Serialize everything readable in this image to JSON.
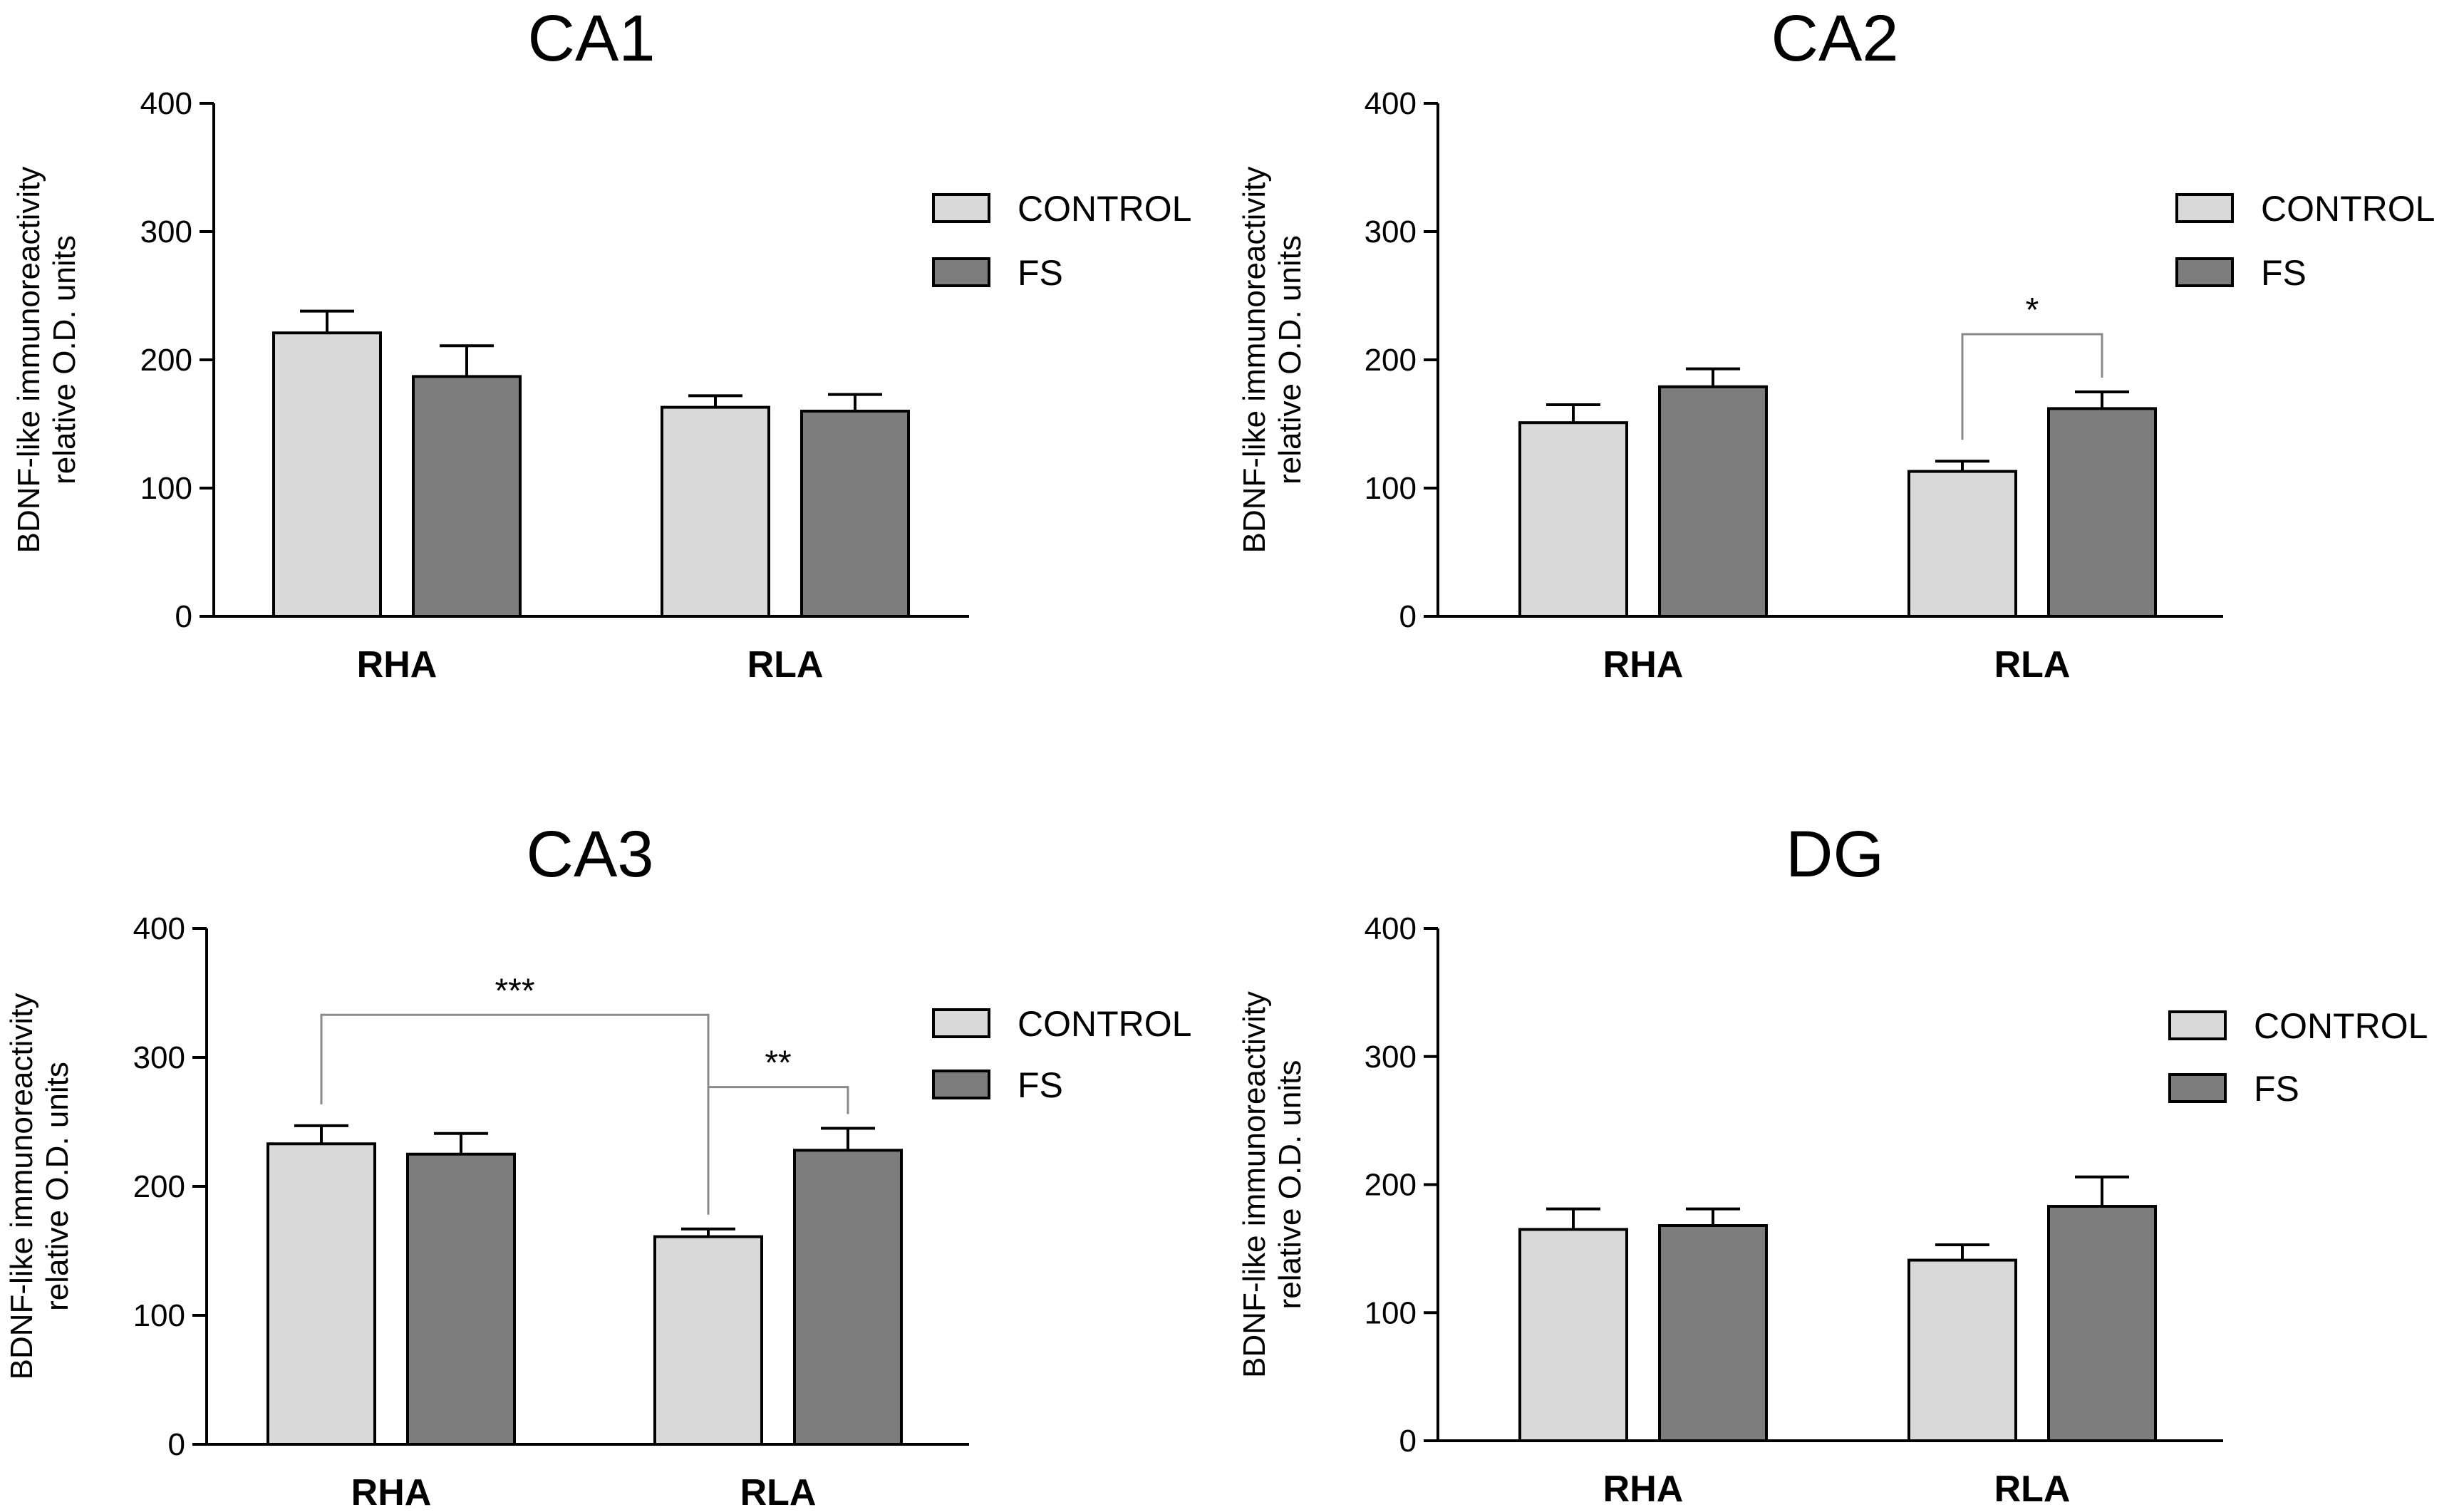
{
  "colors": {
    "control": "#d9d9d9",
    "fs": "#7d7d7d",
    "axis": "#000000",
    "bracket": "#8a8a8a"
  },
  "chart_data": [
    {
      "type": "bar",
      "title": "CA1",
      "ylabel_line1": "BDNF-like immunoreactivity",
      "ylabel_line2": "relative O.D. units",
      "xlabel": "",
      "categories": [
        "RHA",
        "RLA"
      ],
      "ylim": [
        0,
        400
      ],
      "yticks": [
        0,
        100,
        200,
        300,
        400
      ],
      "series": [
        {
          "name": "CONTROL",
          "values": [
            221,
            163
          ],
          "errors": [
            17,
            9
          ]
        },
        {
          "name": "FS",
          "values": [
            187,
            160
          ],
          "errors": [
            24,
            13
          ]
        }
      ],
      "legend": [
        "CONTROL",
        "FS"
      ],
      "significance": []
    },
    {
      "type": "bar",
      "title": "CA2",
      "ylabel_line1": "BDNF-like immunoreactivity",
      "ylabel_line2": "relative O.D. units",
      "xlabel": "",
      "categories": [
        "RHA",
        "RLA"
      ],
      "ylim": [
        0,
        400
      ],
      "yticks": [
        0,
        100,
        200,
        300,
        400
      ],
      "series": [
        {
          "name": "CONTROL",
          "values": [
            151,
            113
          ],
          "errors": [
            14,
            8
          ]
        },
        {
          "name": "FS",
          "values": [
            179,
            162
          ],
          "errors": [
            14,
            13
          ]
        }
      ],
      "legend": [
        "CONTROL",
        "FS"
      ],
      "significance": [
        {
          "label": "*",
          "from": {
            "series": 0,
            "category": 1
          },
          "to": {
            "series": 1,
            "category": 1
          },
          "y": 220
        }
      ]
    },
    {
      "type": "bar",
      "title": "CA3",
      "ylabel_line1": "BDNF-like immunoreactivity",
      "ylabel_line2": "relative O.D. units",
      "xlabel": "",
      "categories": [
        "RHA",
        "RLA"
      ],
      "ylim": [
        0,
        400
      ],
      "yticks": [
        0,
        100,
        200,
        300,
        400
      ],
      "series": [
        {
          "name": "CONTROL",
          "values": [
            233,
            161
          ],
          "errors": [
            14,
            6
          ]
        },
        {
          "name": "FS",
          "values": [
            225,
            228
          ],
          "errors": [
            16,
            17
          ]
        }
      ],
      "legend": [
        "CONTROL",
        "FS"
      ],
      "significance": [
        {
          "label": "***",
          "from": {
            "series": 0,
            "category": 0
          },
          "to": {
            "series": 0,
            "category": 1
          },
          "y": 333
        },
        {
          "label": "**",
          "from": {
            "series": 0,
            "category": 1
          },
          "to": {
            "series": 1,
            "category": 1
          },
          "y": 277
        }
      ]
    },
    {
      "type": "bar",
      "title": "DG",
      "ylabel_line1": "BDNF-like immunoreactivity",
      "ylabel_line2": "relative O.D. units",
      "xlabel": "",
      "categories": [
        "RHA",
        "RLA"
      ],
      "ylim": [
        0,
        400
      ],
      "yticks": [
        0,
        100,
        200,
        300,
        400
      ],
      "series": [
        {
          "name": "CONTROL",
          "values": [
            165,
            141
          ],
          "errors": [
            16,
            12
          ]
        },
        {
          "name": "FS",
          "values": [
            168,
            183
          ],
          "errors": [
            13,
            23
          ]
        }
      ],
      "legend": [
        "CONTROL",
        "FS"
      ],
      "significance": []
    }
  ]
}
